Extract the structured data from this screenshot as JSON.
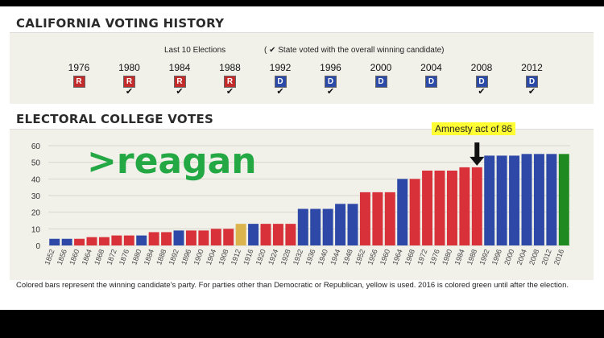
{
  "history": {
    "title": "CALIFORNIA VOTING HISTORY",
    "subtitle": "Last 10 Elections",
    "legend": "( ✔ State voted with the overall winning candidate)",
    "elections": [
      {
        "year": "1976",
        "party": "R",
        "with_winner": false
      },
      {
        "year": "1980",
        "party": "R",
        "with_winner": true
      },
      {
        "year": "1984",
        "party": "R",
        "with_winner": true
      },
      {
        "year": "1988",
        "party": "R",
        "with_winner": true
      },
      {
        "year": "1992",
        "party": "D",
        "with_winner": true
      },
      {
        "year": "1996",
        "party": "D",
        "with_winner": true
      },
      {
        "year": "2000",
        "party": "D",
        "with_winner": false
      },
      {
        "year": "2004",
        "party": "D",
        "with_winner": false
      },
      {
        "year": "2008",
        "party": "D",
        "with_winner": true
      },
      {
        "year": "2012",
        "party": "D",
        "with_winner": true
      }
    ]
  },
  "electoral": {
    "title": "ELECTORAL COLLEGE VOTES",
    "footnote": "Colored bars represent the winning candidate's party. For parties other than Democratic or Republican, yellow is used. 2016 is colored green until after the election."
  },
  "overlay": {
    "meme_text": ">reagan",
    "annotation": "Amnesty act of 86"
  },
  "colors": {
    "R": "#d8313a",
    "D": "#2d48a6",
    "other": "#dcb44e",
    "pending": "#1f8a1f"
  },
  "chart_data": {
    "type": "bar",
    "categories": [
      "1852",
      "1856",
      "1860",
      "1864",
      "1868",
      "1872",
      "1876",
      "1880",
      "1884",
      "1888",
      "1892",
      "1896",
      "1900",
      "1904",
      "1908",
      "1912",
      "1916",
      "1920",
      "1924",
      "1928",
      "1932",
      "1936",
      "1940",
      "1944",
      "1948",
      "1952",
      "1956",
      "1960",
      "1964",
      "1968",
      "1972",
      "1976",
      "1980",
      "1984",
      "1988",
      "1992",
      "1996",
      "2000",
      "2004",
      "2008",
      "2012",
      "2016"
    ],
    "values": [
      4,
      4,
      4,
      5,
      5,
      6,
      6,
      6,
      8,
      8,
      9,
      9,
      9,
      10,
      10,
      13,
      13,
      13,
      13,
      13,
      22,
      22,
      22,
      25,
      25,
      32,
      32,
      32,
      40,
      40,
      45,
      45,
      45,
      47,
      47,
      54,
      54,
      54,
      55,
      55,
      55,
      55
    ],
    "parties": [
      "D",
      "D",
      "R",
      "R",
      "R",
      "R",
      "R",
      "D",
      "R",
      "R",
      "D",
      "R",
      "R",
      "R",
      "R",
      "other",
      "D",
      "R",
      "R",
      "R",
      "D",
      "D",
      "D",
      "D",
      "D",
      "R",
      "R",
      "R",
      "D",
      "R",
      "R",
      "R",
      "R",
      "R",
      "R",
      "D",
      "D",
      "D",
      "D",
      "D",
      "D",
      "pending"
    ],
    "ylim": [
      0,
      60
    ],
    "yticks": [
      0,
      10,
      20,
      30,
      40,
      50,
      60
    ],
    "grid": true,
    "arrow_at": "1988"
  }
}
